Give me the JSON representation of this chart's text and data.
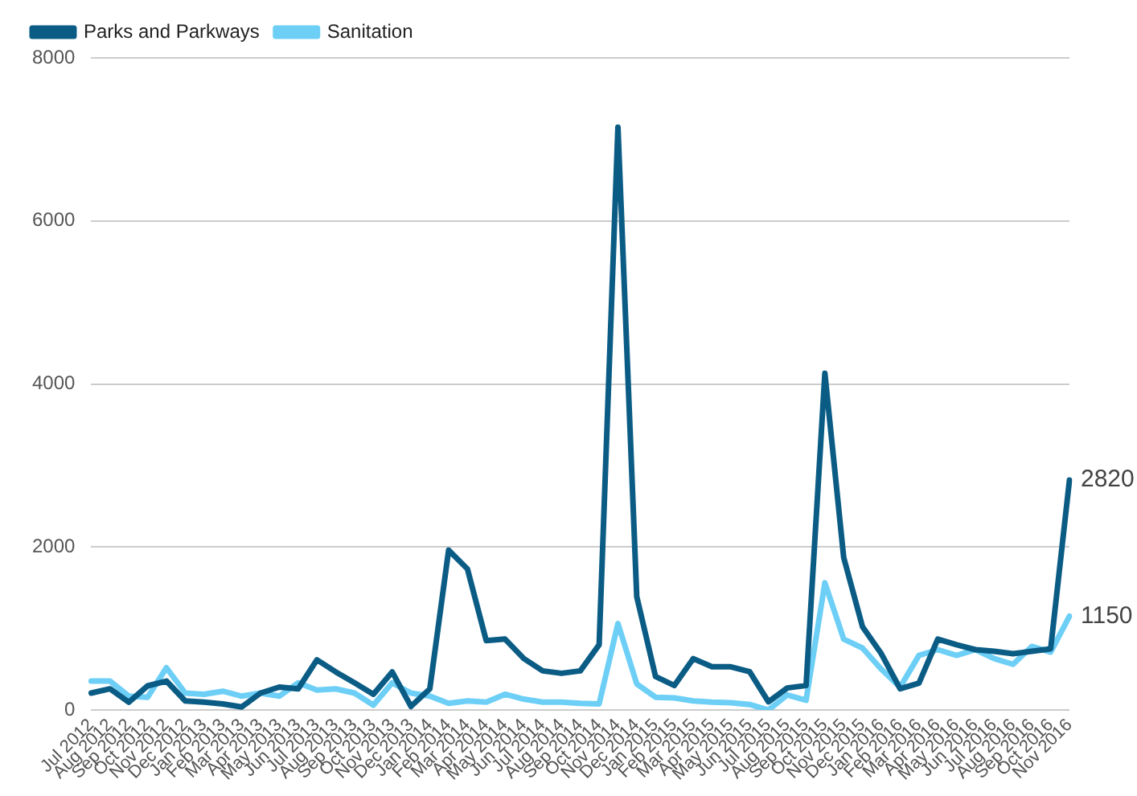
{
  "chart_data": {
    "type": "line",
    "categories": [
      "Jul 2012",
      "Aug 2012",
      "Sep 2012",
      "Oct 2012",
      "Nov 2012",
      "Dec 2012",
      "Jan 2013",
      "Feb 2013",
      "Mar 2013",
      "Apr 2013",
      "May 2013",
      "Jun 2013",
      "Jul 2013",
      "Aug 2013",
      "Sep 2013",
      "Oct 2013",
      "Nov 2013",
      "Dec 2013",
      "Jan 2014",
      "Feb 2014",
      "Mar 2014",
      "Apr 2014",
      "May 2014",
      "Jun 2014",
      "Jul 2014",
      "Aug 2014",
      "Sep 2014",
      "Oct 2014",
      "Nov 2014",
      "Dec 2014",
      "Jan 2015",
      "Feb 2015",
      "Mar 2015",
      "Apr 2015",
      "May 2015",
      "Jun 2015",
      "Jul 2015",
      "Aug 2015",
      "Sep 2015",
      "Oct 2015",
      "Nov 2015",
      "Dec 2015",
      "Jan 2016",
      "Feb 2016",
      "Mar 2016",
      "Apr 2016",
      "May 2016",
      "Jun 2016",
      "Jul 2016",
      "Aug 2016",
      "Sep 2016",
      "Oct 2016",
      "Nov 2016"
    ],
    "series": [
      {
        "name": "Parks and Parkways",
        "color": "#0b5c85",
        "values": [
          207,
          260,
          96,
          296,
          355,
          111,
          96,
          74,
          37,
          207,
          281,
          259,
          615,
          467,
          333,
          193,
          467,
          44,
          259,
          1960,
          1730,
          850,
          870,
          630,
          480,
          450,
          480,
          800,
          7150,
          1390,
          410,
          300,
          630,
          530,
          530,
          470,
          100,
          270,
          300,
          4130,
          1870,
          1020,
          690,
          260,
          330,
          870,
          800,
          740,
          720,
          690,
          720,
          750,
          2820
        ],
        "value_labels": [
          null,
          null,
          null,
          null,
          null,
          null,
          null,
          null,
          null,
          null,
          null,
          null,
          null,
          null,
          null,
          null,
          null,
          null,
          null,
          null,
          null,
          null,
          null,
          null,
          null,
          null,
          null,
          null,
          null,
          null,
          null,
          null,
          null,
          null,
          null,
          null,
          null,
          null,
          null,
          null,
          null,
          null,
          null,
          null,
          null,
          null,
          null,
          null,
          null,
          null,
          null,
          null,
          "2820"
        ]
      },
      {
        "name": "Sanitation",
        "color": "#6dcff6",
        "values": [
          355,
          355,
          170,
          156,
          518,
          207,
          193,
          230,
          170,
          207,
          170,
          333,
          244,
          259,
          207,
          59,
          333,
          207,
          170,
          81,
          111,
          96,
          193,
          133,
          96,
          96,
          81,
          74,
          1060,
          320,
          156,
          148,
          111,
          96,
          89,
          67,
          0,
          185,
          119,
          1560,
          870,
          760,
          500,
          280,
          670,
          740,
          670,
          740,
          630,
          560,
          780,
          710,
          1150
        ],
        "value_labels": [
          null,
          null,
          null,
          null,
          null,
          null,
          null,
          null,
          null,
          null,
          null,
          null,
          null,
          null,
          null,
          null,
          null,
          null,
          null,
          null,
          null,
          null,
          null,
          null,
          null,
          null,
          null,
          null,
          null,
          null,
          null,
          null,
          null,
          null,
          null,
          null,
          null,
          null,
          null,
          null,
          null,
          null,
          null,
          null,
          null,
          null,
          null,
          null,
          null,
          null,
          null,
          null,
          "1150"
        ]
      }
    ],
    "ylim": [
      0,
      8000
    ],
    "yticks": [
      0,
      2000,
      4000,
      6000,
      8000
    ],
    "grid": "y",
    "legend": "top left",
    "marker": "none",
    "line_style": "solid"
  }
}
